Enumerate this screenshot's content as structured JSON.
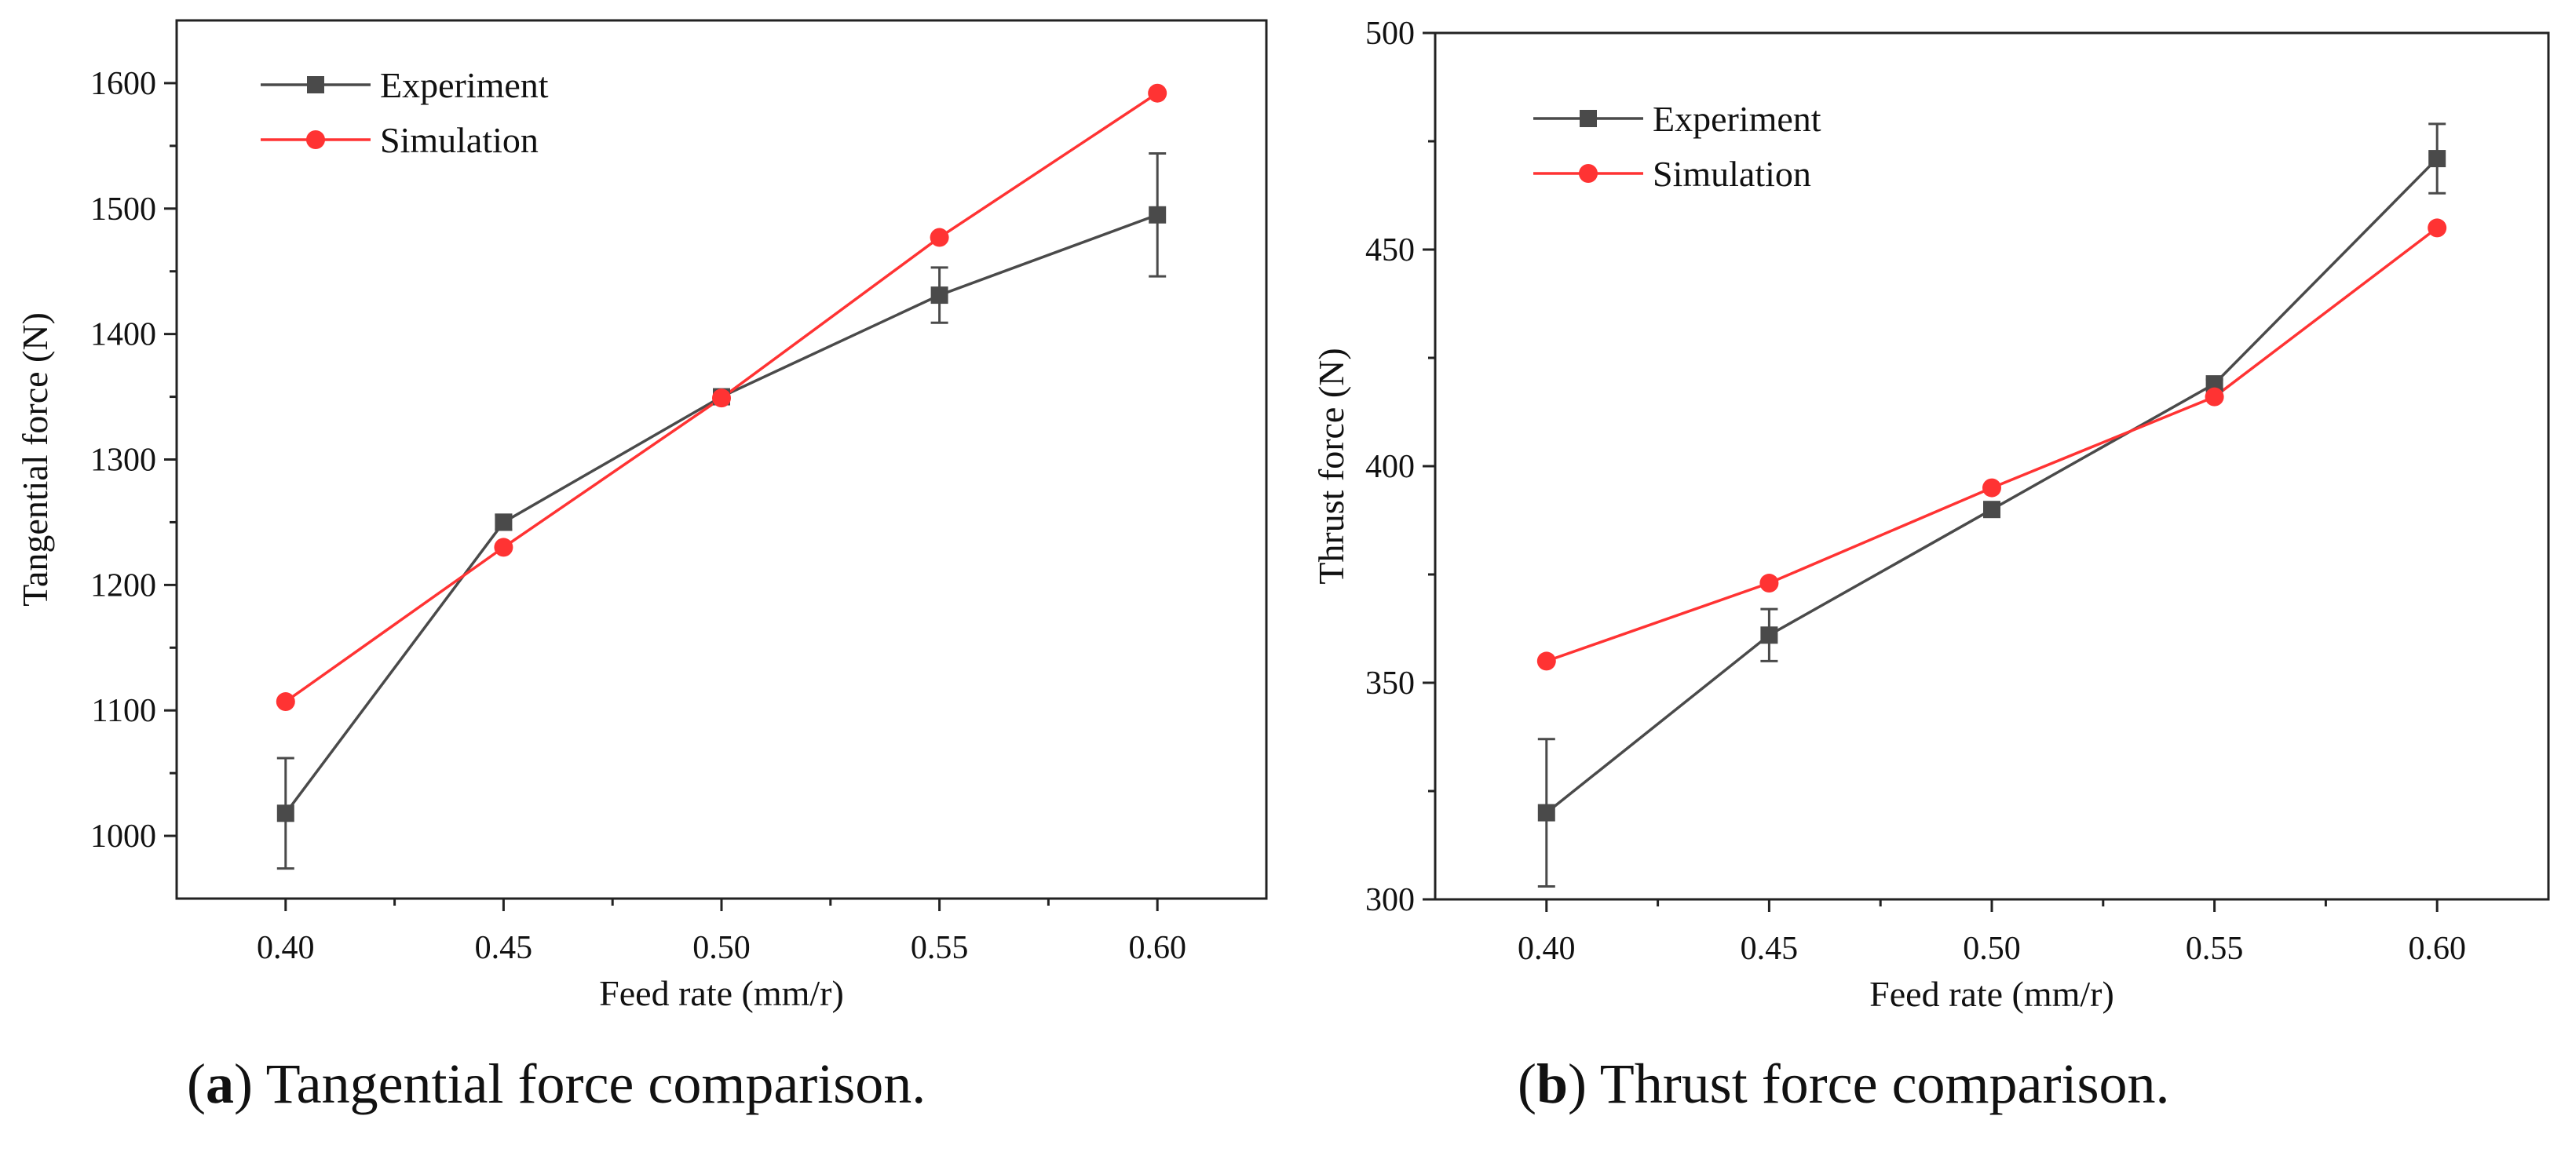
{
  "chart_data": [
    {
      "type": "line",
      "title": "",
      "xlabel": "Feed rate (mm/r)",
      "ylabel": "Tangential force (N)",
      "xlim": [
        0.375,
        0.625
      ],
      "ylim": [
        950,
        1650
      ],
      "x": [
        0.4,
        0.45,
        0.5,
        0.55,
        0.6
      ],
      "xticks": [
        0.4,
        0.45,
        0.5,
        0.55,
        0.6
      ],
      "xtick_labels": [
        "0.40",
        "0.45",
        "0.50",
        "0.55",
        "0.60"
      ],
      "yticks": [
        1000,
        1100,
        1200,
        1300,
        1400,
        1500,
        1600
      ],
      "ytick_labels": [
        "1000",
        "1100",
        "1200",
        "1300",
        "1400",
        "1500",
        "1600"
      ],
      "legend_position": "top-left",
      "series": [
        {
          "name": "Experiment",
          "marker": "square",
          "color": "#4a4a4a",
          "values": [
            1018,
            1250,
            1350,
            1431,
            1495
          ],
          "error": [
            44,
            6,
            0,
            22,
            49
          ]
        },
        {
          "name": "Simulation",
          "marker": "circle",
          "color": "#ff3333",
          "values": [
            1107,
            1230,
            1349,
            1477,
            1592
          ]
        }
      ]
    },
    {
      "type": "line",
      "title": "",
      "xlabel": "Feed rate (mm/r)",
      "ylabel": "Thrust force (N)",
      "xlim": [
        0.375,
        0.625
      ],
      "ylim": [
        300,
        500
      ],
      "x": [
        0.4,
        0.45,
        0.5,
        0.55,
        0.6
      ],
      "xticks": [
        0.4,
        0.45,
        0.5,
        0.55,
        0.6
      ],
      "xtick_labels": [
        "0.40",
        "0.45",
        "0.50",
        "0.55",
        "0.60"
      ],
      "yticks": [
        300,
        350,
        400,
        450,
        500
      ],
      "ytick_labels": [
        "300",
        "350",
        "400",
        "450",
        "500"
      ],
      "legend_position": "top-left",
      "series": [
        {
          "name": "Experiment",
          "marker": "square",
          "color": "#4a4a4a",
          "values": [
            320,
            361,
            390,
            419,
            471
          ],
          "error": [
            17,
            6,
            1,
            1,
            8
          ]
        },
        {
          "name": "Simulation",
          "marker": "circle",
          "color": "#ff3333",
          "values": [
            355,
            373,
            395,
            416,
            455
          ]
        }
      ]
    }
  ],
  "captions": [
    {
      "letter": "a",
      "text": " Tangential force comparison."
    },
    {
      "letter": "b",
      "text": " Thrust force comparison."
    }
  ]
}
